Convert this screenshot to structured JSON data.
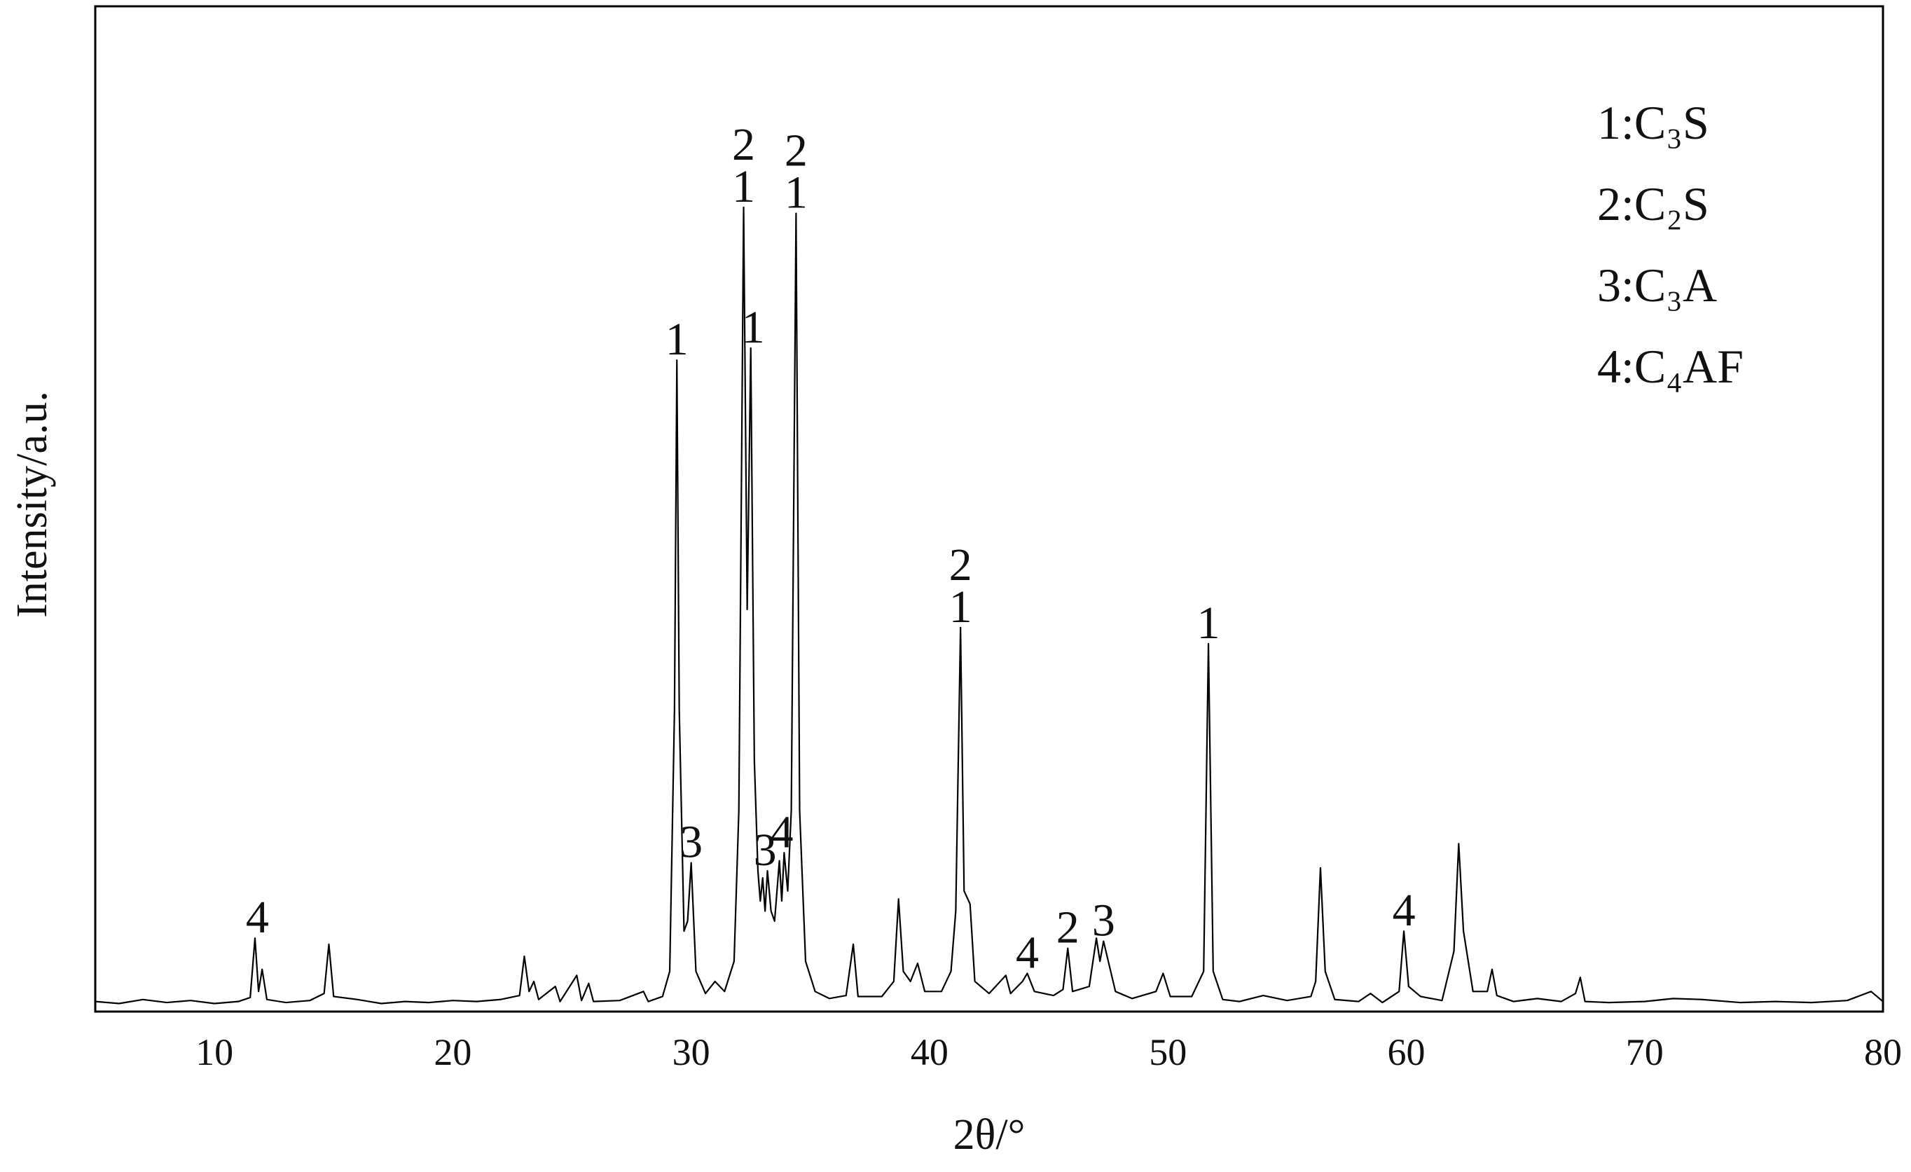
{
  "chart_data": {
    "type": "line",
    "x_label": "2θ/°",
    "y_label": "Intensity/a.u.",
    "xlim": [
      5,
      80
    ],
    "ylim": [
      0,
      100
    ],
    "xticks": [
      10,
      20,
      30,
      40,
      50,
      60,
      70,
      80
    ],
    "color": "#000000",
    "x": [
      5,
      6,
      7,
      8,
      9,
      10,
      11,
      11.5,
      11.7,
      11.85,
      12.0,
      12.2,
      13,
      14,
      14.6,
      14.8,
      15.0,
      16,
      17,
      18,
      19,
      20,
      21,
      22,
      22.8,
      23.0,
      23.2,
      23.4,
      23.6,
      24.3,
      24.5,
      25.2,
      25.4,
      25.7,
      25.9,
      27,
      28,
      28.2,
      28.8,
      29.1,
      29.3,
      29.4,
      29.5,
      29.7,
      29.85,
      30.0,
      30.2,
      30.6,
      31,
      31.4,
      31.8,
      32.0,
      32.2,
      32.35,
      32.5,
      32.65,
      32.8,
      32.9,
      33.0,
      33.1,
      33.2,
      33.35,
      33.5,
      33.7,
      33.8,
      33.9,
      34.05,
      34.2,
      34.4,
      34.55,
      34.8,
      35.2,
      35.8,
      36.5,
      36.8,
      37.0,
      38,
      38.5,
      38.7,
      38.9,
      39.2,
      39.5,
      39.8,
      40.5,
      40.9,
      41.1,
      41.3,
      41.45,
      41.7,
      41.9,
      42.5,
      43.2,
      43.4,
      43.9,
      44.1,
      44.4,
      45.2,
      45.6,
      45.8,
      46.0,
      46.7,
      47.0,
      47.15,
      47.3,
      47.5,
      47.8,
      48.5,
      49.5,
      49.8,
      50.1,
      51,
      51.5,
      51.7,
      51.9,
      52.3,
      53,
      54,
      55,
      56,
      56.2,
      56.4,
      56.6,
      57,
      58,
      58.5,
      59,
      59.7,
      59.9,
      60.1,
      60.6,
      61.5,
      62.0,
      62.2,
      62.4,
      62.8,
      63.4,
      63.6,
      63.8,
      64.5,
      65.5,
      66.5,
      67.1,
      67.3,
      67.5,
      68.5,
      70,
      71.2,
      72.4,
      74,
      75.5,
      77,
      78.5,
      79.5,
      80
    ],
    "values": [
      1.0,
      0.8,
      1.2,
      0.9,
      1.1,
      0.8,
      1.0,
      1.4,
      7.3,
      2.0,
      4.2,
      1.2,
      0.9,
      1.1,
      1.8,
      6.7,
      1.5,
      1.2,
      0.8,
      1.0,
      0.9,
      1.1,
      1.0,
      1.2,
      1.6,
      5.5,
      2.0,
      3.0,
      1.2,
      2.5,
      1.0,
      3.6,
      1.1,
      2.8,
      1.0,
      1.1,
      2.0,
      1.0,
      1.5,
      4,
      30,
      64.8,
      30,
      8,
      9,
      14.8,
      4,
      1.8,
      3,
      2,
      5,
      20,
      80.0,
      40,
      66,
      25,
      14,
      11,
      13.3,
      10,
      14,
      10,
      9,
      15,
      11,
      15.8,
      12,
      20,
      79.4,
      20,
      5,
      2,
      1.3,
      1.6,
      6.7,
      1.5,
      1.5,
      3,
      11.2,
      4,
      3,
      4.8,
      2,
      2.0,
      4,
      10,
      38.2,
      12,
      10.7,
      3,
      1.8,
      3.6,
      1.8,
      3.0,
      3.8,
      2,
      1.6,
      2.2,
      6.3,
      2,
      2.5,
      7.3,
      5,
      7.0,
      5,
      2,
      1.3,
      2.0,
      3.8,
      1.5,
      1.5,
      4,
      36.6,
      4,
      1.2,
      1.0,
      1.6,
      1.1,
      1.5,
      3,
      14.3,
      4,
      1.2,
      1.0,
      1.8,
      0.9,
      2.0,
      8.0,
      2.5,
      1.5,
      1.1,
      6,
      16.7,
      8,
      2,
      2.0,
      4.2,
      1.6,
      1.0,
      1.3,
      1.0,
      1.8,
      3.4,
      1.0,
      0.9,
      1.0,
      1.3,
      1.2,
      0.9,
      1.0,
      0.9,
      1.1,
      2.0,
      1.0
    ],
    "annotations": [
      {
        "x": 11.8,
        "labels": [
          "4"
        ]
      },
      {
        "x": 29.4,
        "labels": [
          "1"
        ]
      },
      {
        "x": 30.0,
        "labels": [
          "3"
        ]
      },
      {
        "x": 32.2,
        "labels": [
          "2",
          "1"
        ]
      },
      {
        "x": 32.6,
        "labels": [
          "1"
        ]
      },
      {
        "x": 33.1,
        "labels": [
          "3"
        ]
      },
      {
        "x": 33.8,
        "labels": [
          "4"
        ]
      },
      {
        "x": 34.4,
        "labels": [
          "2",
          "1"
        ]
      },
      {
        "x": 41.3,
        "labels": [
          "2",
          "1"
        ]
      },
      {
        "x": 44.1,
        "labels": [
          "4"
        ]
      },
      {
        "x": 45.8,
        "labels": [
          "2"
        ]
      },
      {
        "x": 47.3,
        "labels": [
          "3"
        ]
      },
      {
        "x": 51.7,
        "labels": [
          "1"
        ]
      },
      {
        "x": 59.9,
        "labels": [
          "4"
        ]
      }
    ],
    "legend": [
      "1:C₃S",
      "2:C₂S",
      "3:C₃A",
      "4:C₄AF"
    ]
  }
}
